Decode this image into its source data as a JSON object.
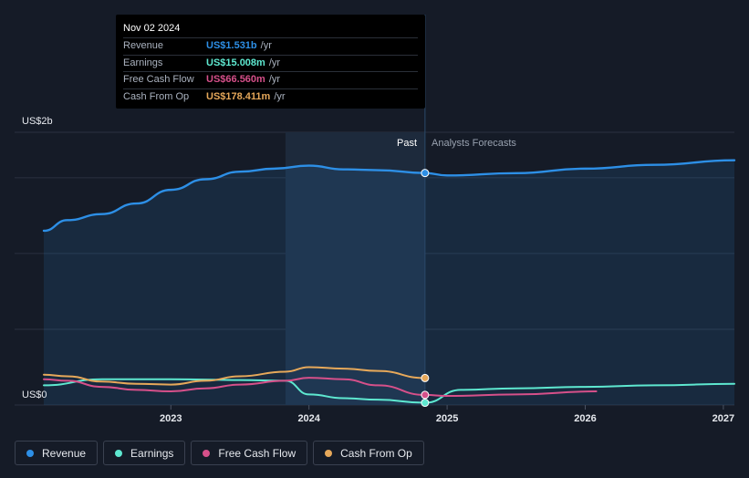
{
  "tooltip": {
    "date": "Nov 02 2024",
    "rows": [
      {
        "label": "Revenue",
        "value": "US$1.531b",
        "unit": "/yr",
        "color": "#2d8fe6"
      },
      {
        "label": "Earnings",
        "value": "US$15.008m",
        "unit": "/yr",
        "color": "#5ee8d0"
      },
      {
        "label": "Free Cash Flow",
        "value": "US$66.560m",
        "unit": "/yr",
        "color": "#d6508a"
      },
      {
        "label": "Cash From Op",
        "value": "US$178.411m",
        "unit": "/yr",
        "color": "#e6a85a"
      }
    ]
  },
  "legend": [
    {
      "label": "Revenue",
      "color": "#2d8fe6"
    },
    {
      "label": "Earnings",
      "color": "#5ee8d0"
    },
    {
      "label": "Free Cash Flow",
      "color": "#d6508a"
    },
    {
      "label": "Cash From Op",
      "color": "#e6a85a"
    }
  ],
  "chart_data": {
    "type": "line",
    "y_top_label": "US$2b",
    "y_bottom_label": "US$0",
    "ylim": [
      0,
      1.8
    ],
    "xlim": [
      2022.08,
      2027.08
    ],
    "x_ticks": [
      2023,
      2024,
      2025,
      2026,
      2027
    ],
    "x_tick_labels": [
      "2023",
      "2024",
      "2025",
      "2026",
      "2027"
    ],
    "past_label": "Past",
    "forecast_label": "Analysts Forecasts",
    "divider_x": 2024.84,
    "highlight_start_x": 2023.83,
    "series": [
      {
        "name": "Revenue",
        "color": "#2d8fe6",
        "area": true,
        "x": [
          2022.08,
          2022.25,
          2022.5,
          2022.75,
          2023.0,
          2023.25,
          2023.5,
          2023.75,
          2024.0,
          2024.25,
          2024.5,
          2024.84
        ],
        "y": [
          1.15,
          1.22,
          1.26,
          1.33,
          1.42,
          1.49,
          1.54,
          1.56,
          1.58,
          1.555,
          1.55,
          1.531
        ]
      },
      {
        "name": "Revenue Forecast",
        "color": "#2d8fe6",
        "area": true,
        "x": [
          2024.84,
          2025.0,
          2025.5,
          2026.0,
          2026.5,
          2027.08
        ],
        "y": [
          1.531,
          1.515,
          1.53,
          1.56,
          1.585,
          1.615
        ]
      },
      {
        "name": "Earnings",
        "color": "#5ee8d0",
        "area": false,
        "x": [
          2022.08,
          2022.5,
          2023.0,
          2023.5,
          2023.83,
          2024.0,
          2024.25,
          2024.5,
          2024.84
        ],
        "y": [
          0.13,
          0.17,
          0.17,
          0.165,
          0.16,
          0.07,
          0.045,
          0.035,
          0.015
        ]
      },
      {
        "name": "Earnings Forecast",
        "color": "#5ee8d0",
        "area": false,
        "x": [
          2024.84,
          2025.1,
          2025.5,
          2026.0,
          2026.5,
          2027.08
        ],
        "y": [
          0.015,
          0.1,
          0.11,
          0.12,
          0.13,
          0.14
        ]
      },
      {
        "name": "Free Cash Flow",
        "color": "#d6508a",
        "area": false,
        "x": [
          2022.08,
          2022.25,
          2022.5,
          2022.75,
          2023.0,
          2023.25,
          2023.5,
          2023.83,
          2024.0,
          2024.25,
          2024.5,
          2024.84
        ],
        "y": [
          0.17,
          0.16,
          0.12,
          0.1,
          0.09,
          0.11,
          0.135,
          0.16,
          0.18,
          0.17,
          0.13,
          0.0666
        ]
      },
      {
        "name": "Free Cash Flow Forecast",
        "color": "#d6508a",
        "area": false,
        "x": [
          2024.84,
          2025.0,
          2025.5,
          2026.08
        ],
        "y": [
          0.0666,
          0.06,
          0.07,
          0.09
        ]
      },
      {
        "name": "Cash From Op",
        "color": "#e6a85a",
        "area": false,
        "x": [
          2022.08,
          2022.25,
          2022.5,
          2022.75,
          2023.0,
          2023.25,
          2023.5,
          2023.83,
          2024.0,
          2024.25,
          2024.5,
          2024.84
        ],
        "y": [
          0.2,
          0.19,
          0.155,
          0.14,
          0.135,
          0.16,
          0.19,
          0.22,
          0.25,
          0.24,
          0.225,
          0.178
        ]
      }
    ],
    "markers": [
      {
        "x": 2024.84,
        "y": 1.531,
        "color": "#2d8fe6"
      },
      {
        "x": 2024.84,
        "y": 0.178,
        "color": "#e6a85a"
      },
      {
        "x": 2024.84,
        "y": 0.0666,
        "color": "#d6508a"
      },
      {
        "x": 2024.84,
        "y": 0.015,
        "color": "#5ee8d0"
      }
    ]
  }
}
